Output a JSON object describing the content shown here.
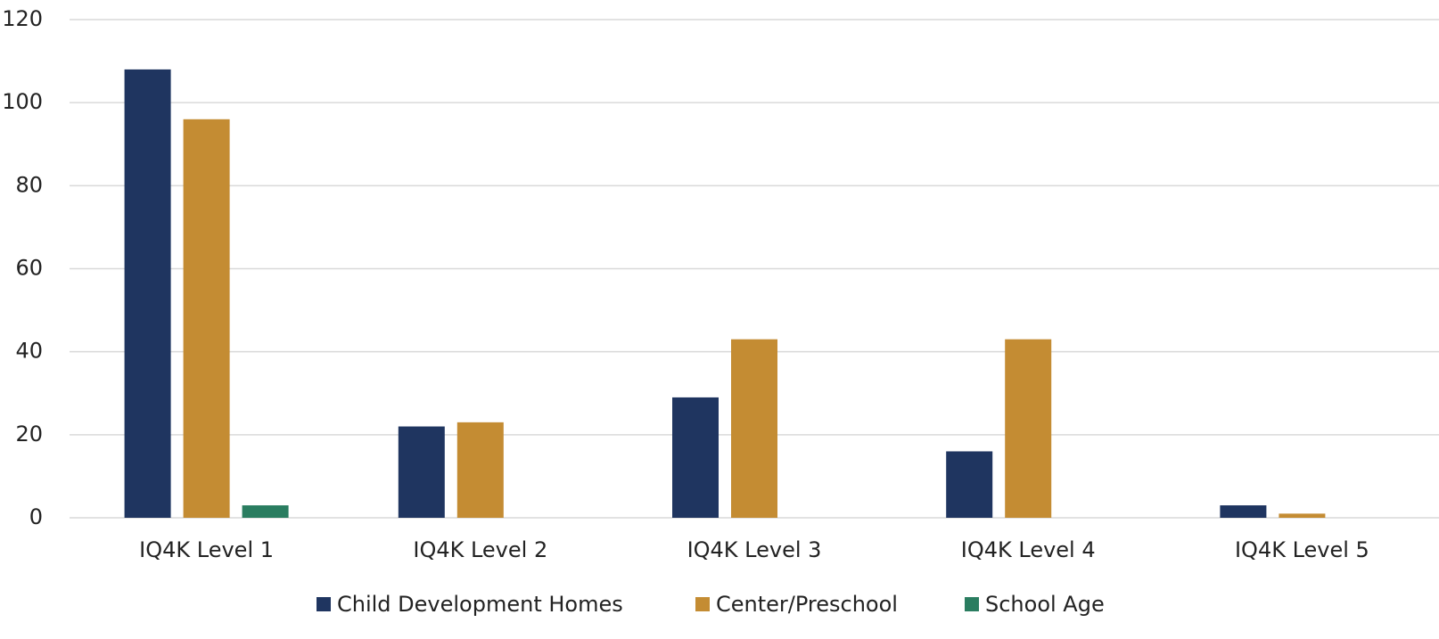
{
  "chart_data": {
    "type": "bar",
    "categories": [
      "IQ4K Level 1",
      "IQ4K Level 2",
      "IQ4K Level 3",
      "IQ4K Level 4",
      "IQ4K Level 5"
    ],
    "series": [
      {
        "name": "Child Development Homes",
        "color": "#1f3560",
        "values": [
          108,
          22,
          29,
          16,
          3
        ]
      },
      {
        "name": "Center/Preschool",
        "color": "#c48c33",
        "values": [
          96,
          23,
          43,
          43,
          1
        ]
      },
      {
        "name": "School Age",
        "color": "#2a7d60",
        "values": [
          3,
          0,
          0,
          0,
          0
        ]
      }
    ],
    "ylim": [
      0,
      120
    ],
    "yticks": [
      0,
      20,
      40,
      60,
      80,
      100,
      120
    ],
    "grid": true,
    "legend": "bottom"
  }
}
